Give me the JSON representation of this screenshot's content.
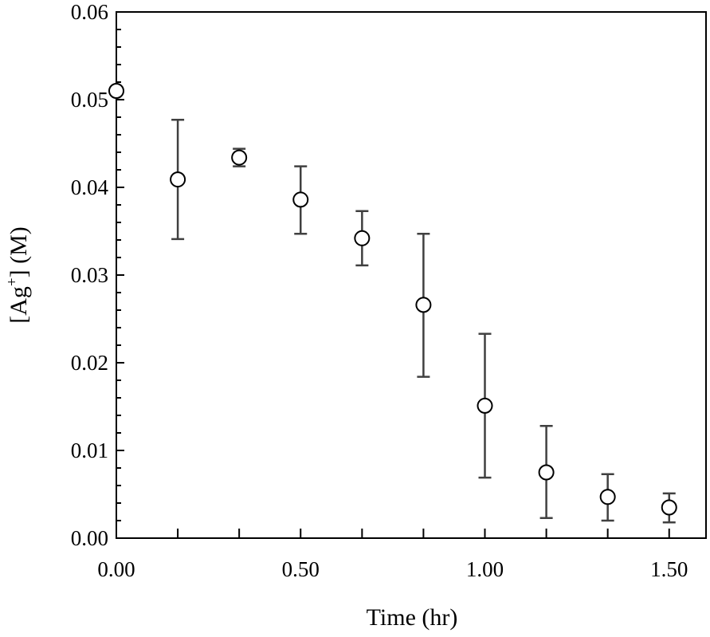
{
  "chart_data": {
    "type": "scatter",
    "title": "",
    "xlabel": "Time (hr)",
    "ylabel_parts": {
      "pre": "[Ag",
      "sup": "+",
      "post": "] (M)"
    },
    "xlim": [
      0,
      1.6
    ],
    "ylim": [
      0,
      0.06
    ],
    "x_ticks": [
      0,
      0.5,
      1.0,
      1.5
    ],
    "x_tick_labels": [
      "0.00",
      "0.50",
      "1.00",
      "1.50"
    ],
    "x_minor_ticks": [
      0.1667,
      0.3333,
      0.6667,
      0.8333,
      1.1667,
      1.3333
    ],
    "y_ticks": [
      0,
      0.01,
      0.02,
      0.03,
      0.04,
      0.05,
      0.06
    ],
    "y_tick_labels": [
      "0.00",
      "0.01",
      "0.02",
      "0.03",
      "0.04",
      "0.05",
      "0.06"
    ],
    "grid": false,
    "marker": "open-circle",
    "colors": {
      "marker": "#000000",
      "errorbar": "#404040",
      "axis": "#000000"
    },
    "series": [
      {
        "x": [
          0.0,
          0.1667,
          0.3333,
          0.5,
          0.6667,
          0.8333,
          1.0,
          1.1667,
          1.3333,
          1.5
        ],
        "y": [
          0.051,
          0.0409,
          0.0434,
          0.0386,
          0.0342,
          0.0266,
          0.0151,
          0.0075,
          0.0047,
          0.0035
        ],
        "err_low": [
          null,
          0.0341,
          0.0424,
          0.0347,
          0.0311,
          0.0184,
          0.0069,
          0.0023,
          0.002,
          0.0018
        ],
        "err_high": [
          null,
          0.0477,
          0.0444,
          0.0424,
          0.0373,
          0.0347,
          0.0233,
          0.0128,
          0.0073,
          0.0051
        ]
      }
    ]
  }
}
